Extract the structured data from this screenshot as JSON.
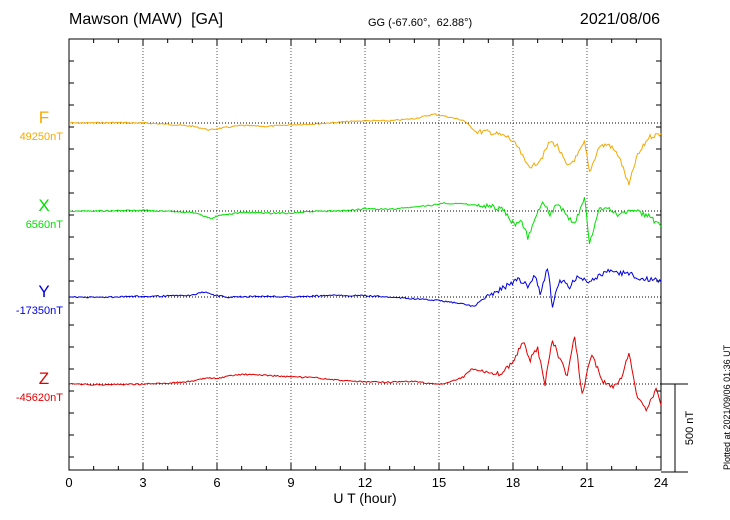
{
  "header": {
    "title": "Mawson (MAW)  [GA]",
    "coords": "GG (-67.60°,  62.88°)",
    "date": "2021/08/06"
  },
  "footer": {
    "plotted": "Plotted at 2021/09/06 01:36 UT"
  },
  "chart_data": {
    "type": "line",
    "title": "Mawson (MAW)  [GA]",
    "xlabel": "U T (hour)",
    "xlim": [
      0,
      24
    ],
    "x_ticks": [
      "0",
      "3",
      "6",
      "9",
      "12",
      "15",
      "18",
      "21",
      "24"
    ],
    "scale_bar": {
      "label": "500 nT",
      "value_nT": 500
    },
    "grid": true,
    "series": [
      {
        "name": "F",
        "baseline_label": "49250nT",
        "baseline_nT": 49250,
        "color": "#f5a800",
        "x": [
          0,
          1,
          2,
          3,
          4,
          5,
          5.7,
          6,
          7,
          8,
          9,
          10,
          11,
          12,
          13,
          14,
          14.8,
          15.2,
          16,
          16.5,
          17,
          17.8,
          18.2,
          18.5,
          18.8,
          19.2,
          19.5,
          19.8,
          20.2,
          20.6,
          20.9,
          21.1,
          21.5,
          21.9,
          22.3,
          22.7,
          23,
          23.5,
          24
        ],
        "values": [
          49250,
          49251,
          49252,
          49250,
          49243,
          49232,
          49210,
          49218,
          49236,
          49230,
          49240,
          49245,
          49255,
          49263,
          49262,
          49275,
          49300,
          49290,
          49265,
          49200,
          49200,
          49170,
          49112,
          49025,
          49000,
          49060,
          49145,
          49120,
          49000,
          49060,
          49140,
          48970,
          49118,
          49128,
          49060,
          48895,
          49050,
          49170,
          49190
        ]
      },
      {
        "name": "X",
        "baseline_label": "6560nT",
        "baseline_nT": 6560,
        "color": "#00e000",
        "x": [
          0,
          1,
          2,
          3,
          4,
          5,
          5.8,
          6,
          7,
          8,
          9,
          10,
          11,
          12,
          13,
          14,
          14.8,
          15.2,
          16,
          16.6,
          17,
          17.6,
          18.1,
          18.3,
          18.6,
          18.9,
          19.2,
          19.5,
          19.8,
          20.2,
          20.5,
          20.9,
          21.1,
          21.5,
          21.9,
          22.3,
          22.7,
          23,
          23.5,
          24
        ],
        "values": [
          6560,
          6560,
          6562,
          6565,
          6557,
          6552,
          6515,
          6532,
          6552,
          6548,
          6548,
          6558,
          6560,
          6572,
          6570,
          6582,
          6595,
          6605,
          6600,
          6590,
          6590,
          6565,
          6470,
          6520,
          6410,
          6515,
          6625,
          6540,
          6605,
          6530,
          6480,
          6640,
          6370,
          6570,
          6580,
          6535,
          6560,
          6560,
          6530,
          6470
        ]
      },
      {
        "name": "Y",
        "baseline_label": "-17350nT",
        "baseline_nT": -17350,
        "color": "#0000e0",
        "x": [
          0,
          1,
          2,
          3,
          4,
          5,
          5.5,
          5.9,
          6.5,
          7,
          8,
          9,
          10,
          11,
          12,
          13,
          14,
          15,
          16,
          16.4,
          16.8,
          17.3,
          17.7,
          18.2,
          18.6,
          18.9,
          19.1,
          19.4,
          19.6,
          19.9,
          20.3,
          20.6,
          21,
          21.4,
          21.8,
          22.3,
          22.7,
          23.2,
          24
        ],
        "values": [
          -17350,
          -17352,
          -17350,
          -17346,
          -17344,
          -17340,
          -17320,
          -17340,
          -17352,
          -17348,
          -17345,
          -17350,
          -17344,
          -17340,
          -17343,
          -17350,
          -17360,
          -17370,
          -17390,
          -17405,
          -17360,
          -17325,
          -17290,
          -17250,
          -17285,
          -17230,
          -17330,
          -17180,
          -17400,
          -17250,
          -17295,
          -17230,
          -17260,
          -17240,
          -17200,
          -17215,
          -17215,
          -17245,
          -17260
        ]
      },
      {
        "name": "Z",
        "baseline_label": "-45620nT",
        "baseline_nT": -45620,
        "color": "#e00000",
        "x": [
          0,
          1,
          2,
          3,
          4,
          5,
          5.6,
          6,
          6.5,
          7,
          8,
          9,
          10,
          11,
          12,
          13,
          14,
          14.8,
          15.2,
          16,
          16.3,
          16.8,
          17.2,
          17.6,
          18,
          18.4,
          18.7,
          19,
          19.3,
          19.6,
          19.9,
          20.2,
          20.5,
          20.8,
          21.2,
          21.6,
          22,
          22.4,
          22.7,
          23,
          23.4,
          23.8,
          24
        ],
        "values": [
          -45620,
          -45624,
          -45622,
          -45620,
          -45615,
          -45605,
          -45585,
          -45590,
          -45575,
          -45565,
          -45570,
          -45580,
          -45585,
          -45600,
          -45608,
          -45610,
          -45605,
          -45620,
          -45620,
          -45580,
          -45535,
          -45545,
          -45570,
          -45555,
          -45490,
          -45380,
          -45480,
          -45420,
          -45620,
          -45370,
          -45480,
          -45575,
          -45340,
          -45680,
          -45445,
          -45600,
          -45640,
          -45590,
          -45440,
          -45680,
          -45760,
          -45650,
          -45740
        ]
      }
    ]
  }
}
